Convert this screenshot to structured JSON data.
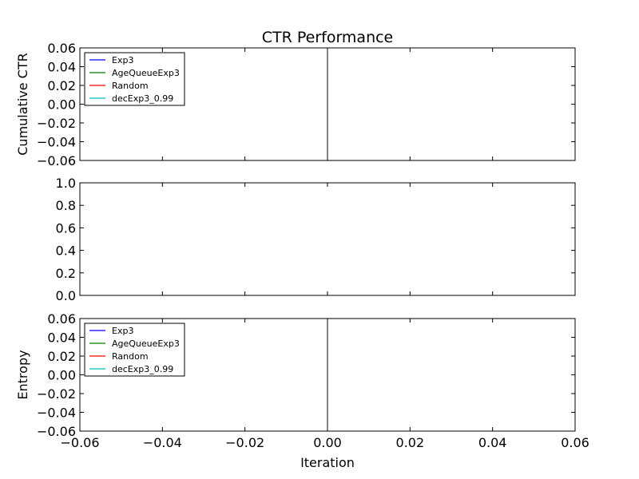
{
  "figure": {
    "title": "CTR Performance",
    "xlabel": "Iteration",
    "background": "#ffffff",
    "series_colors": {
      "Exp3": "#0000ff",
      "AgeQueueExp3": "#008000",
      "Random": "#ff0000",
      "decExp3_0.99": "#00bfbf"
    }
  },
  "chart_data": [
    {
      "type": "line",
      "title": "CTR Performance",
      "ylabel": "Cumulative CTR",
      "xlabel": "",
      "xlim": [
        -0.06,
        0.06
      ],
      "ylim": [
        -0.06,
        0.06
      ],
      "yticks": [
        "0.06",
        "0.04",
        "0.02",
        "0.00",
        "−0.02",
        "−0.04",
        "−0.06"
      ],
      "ytick_values": [
        0.06,
        0.04,
        0.02,
        0.0,
        -0.02,
        -0.04,
        -0.06
      ],
      "vline_x": 0.0,
      "legend": [
        "Exp3",
        "AgeQueueExp3",
        "Random",
        "decExp3_0.99"
      ],
      "legend_position": "upper-left",
      "series": [
        {
          "name": "Exp3",
          "x": [],
          "y": []
        },
        {
          "name": "AgeQueueExp3",
          "x": [],
          "y": []
        },
        {
          "name": "Random",
          "x": [],
          "y": []
        },
        {
          "name": "decExp3_0.99",
          "x": [],
          "y": []
        }
      ]
    },
    {
      "type": "line",
      "ylabel": "",
      "xlabel": "",
      "xlim": [
        -0.06,
        0.06
      ],
      "ylim": [
        0.0,
        1.0
      ],
      "yticks": [
        "1.0",
        "0.8",
        "0.6",
        "0.4",
        "0.2",
        "0.0"
      ],
      "ytick_values": [
        1.0,
        0.8,
        0.6,
        0.4,
        0.2,
        0.0
      ],
      "series": []
    },
    {
      "type": "line",
      "ylabel": "Entropy",
      "xlabel": "Iteration",
      "xlim": [
        -0.06,
        0.06
      ],
      "ylim": [
        -0.06,
        0.06
      ],
      "yticks": [
        "0.06",
        "0.04",
        "0.02",
        "0.00",
        "−0.02",
        "−0.04",
        "−0.06"
      ],
      "ytick_values": [
        0.06,
        0.04,
        0.02,
        0.0,
        -0.02,
        -0.04,
        -0.06
      ],
      "xticks": [
        "−0.06",
        "−0.04",
        "−0.02",
        "0.00",
        "0.02",
        "0.04",
        "0.06"
      ],
      "xtick_values": [
        -0.06,
        -0.04,
        -0.02,
        0.0,
        0.02,
        0.04,
        0.06
      ],
      "vline_x": 0.0,
      "legend": [
        "Exp3",
        "AgeQueueExp3",
        "Random",
        "decExp3_0.99"
      ],
      "legend_position": "upper-left",
      "series": [
        {
          "name": "Exp3",
          "x": [],
          "y": []
        },
        {
          "name": "AgeQueueExp3",
          "x": [],
          "y": []
        },
        {
          "name": "Random",
          "x": [],
          "y": []
        },
        {
          "name": "decExp3_0.99",
          "x": [],
          "y": []
        }
      ]
    }
  ]
}
